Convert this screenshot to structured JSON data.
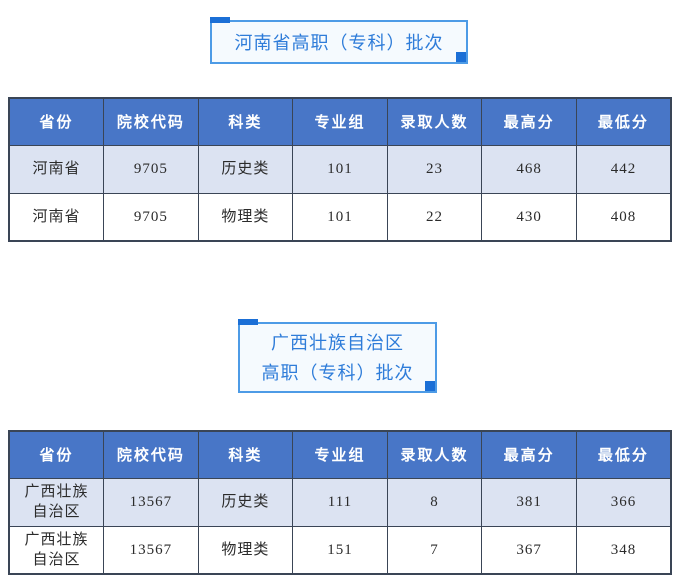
{
  "colors": {
    "header_bg": "#4876C7",
    "header_text": "#FFFFFF",
    "row_alt_bg": "#DCE3F2",
    "row_plain_bg": "#FFFFFF",
    "table_border": "#3A4556",
    "title_text": "#2E7CD9",
    "title_border": "#4D9BE6",
    "title_accent": "#1B6FD6",
    "title_bg": "#F5FAFE",
    "page_bg": "#FFFFFF"
  },
  "sections": [
    {
      "title_lines": [
        "河南省高职（专科）批次"
      ],
      "table": {
        "headers": [
          "省份",
          "院校代码",
          "科类",
          "专业组",
          "录取人数",
          "最高分",
          "最低分"
        ],
        "rows": [
          [
            "河南省",
            "9705",
            "历史类",
            "101",
            "23",
            "468",
            "442"
          ],
          [
            "河南省",
            "9705",
            "物理类",
            "101",
            "22",
            "430",
            "408"
          ]
        ]
      }
    },
    {
      "title_lines": [
        "广西壮族自治区",
        "高职（专科）批次"
      ],
      "table": {
        "headers": [
          "省份",
          "院校代码",
          "科类",
          "专业组",
          "录取人数",
          "最高分",
          "最低分"
        ],
        "rows": [
          [
            "广西壮族自治区",
            "13567",
            "历史类",
            "111",
            "8",
            "381",
            "366"
          ],
          [
            "广西壮族自治区",
            "13567",
            "物理类",
            "151",
            "7",
            "367",
            "348"
          ]
        ]
      }
    }
  ]
}
